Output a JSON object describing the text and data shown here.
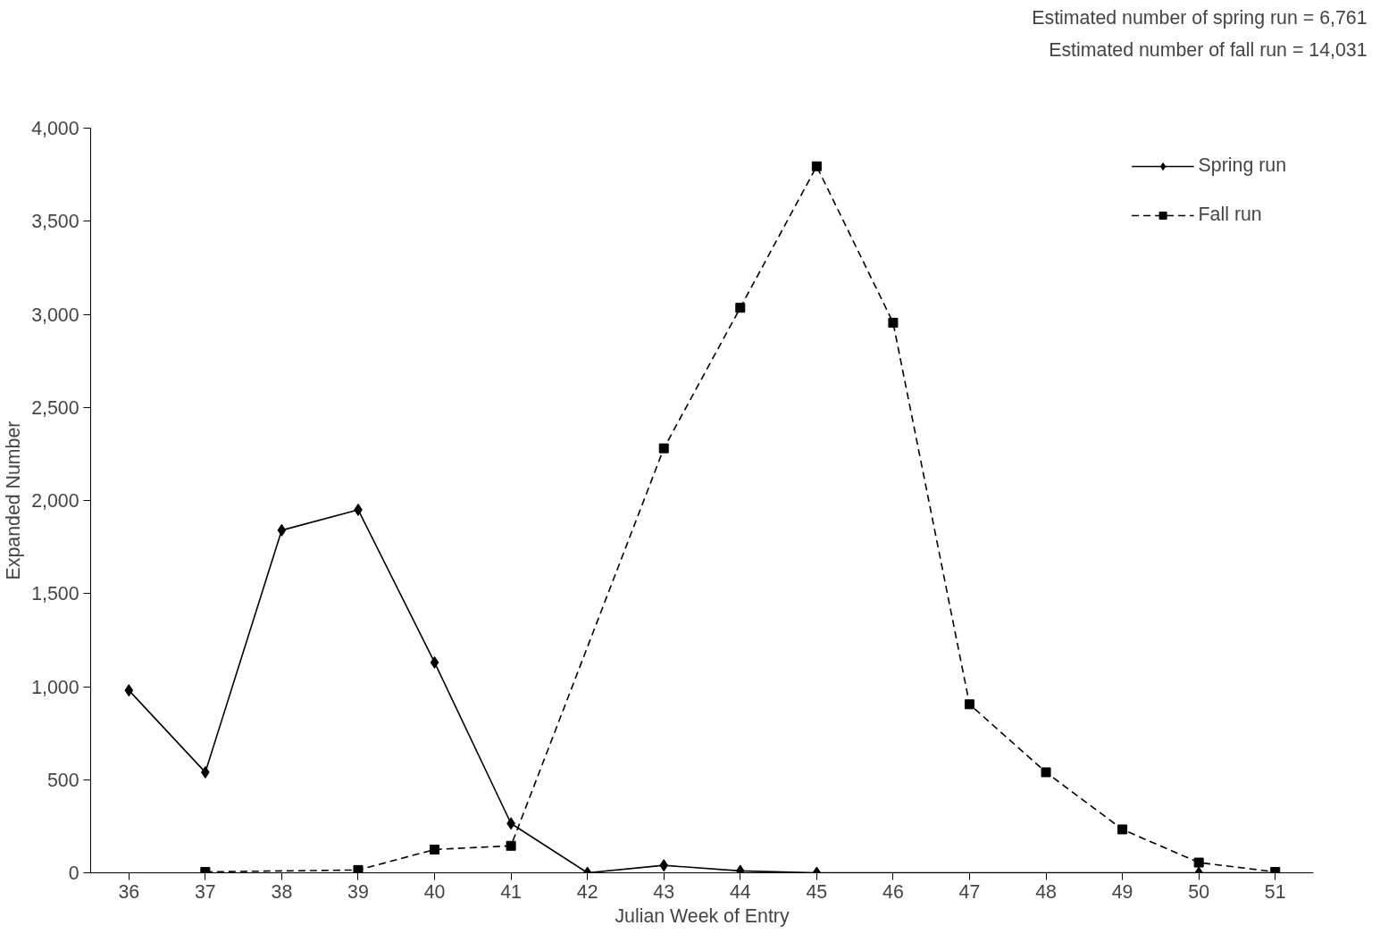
{
  "chart_data": {
    "type": "line",
    "xlabel": "Julian Week of Entry",
    "ylabel": "Expanded Number",
    "annotations": [
      "Estimated number of spring run = 6,761",
      "Estimated number of fall run = 14,031"
    ],
    "xlim": [
      35.5,
      51.5
    ],
    "xticks": [
      36,
      37,
      38,
      39,
      40,
      41,
      42,
      43,
      44,
      45,
      46,
      47,
      48,
      49,
      50,
      51
    ],
    "ylim": [
      0,
      4000
    ],
    "yticks": [
      {
        "value": 0,
        "label": "0"
      },
      {
        "value": 500,
        "label": "500"
      },
      {
        "value": 1000,
        "label": "1,000"
      },
      {
        "value": 1500,
        "label": "1,500"
      },
      {
        "value": 2000,
        "label": "2,000"
      },
      {
        "value": 2500,
        "label": "2,500"
      },
      {
        "value": 3000,
        "label": "3,000"
      },
      {
        "value": 3500,
        "label": "3,500"
      },
      {
        "value": 4000,
        "label": "4,000"
      }
    ],
    "grid": false,
    "legend": "top right",
    "series": [
      {
        "name": "Spring run",
        "color": "#000000",
        "marker": "diamond",
        "line_style": "solid",
        "x": [
          36,
          37,
          38,
          39,
          40,
          41,
          42,
          43,
          44,
          45,
          50,
          51
        ],
        "values": [
          980,
          540,
          1840,
          1950,
          1130,
          265,
          0,
          40,
          10,
          0,
          0,
          0
        ]
      },
      {
        "name": "Fall run",
        "color": "#000000",
        "marker": "square",
        "line_style": "dashed",
        "x": [
          37,
          39,
          40,
          41,
          43,
          44,
          45,
          46,
          47,
          48,
          49,
          50,
          51
        ],
        "values": [
          5,
          15,
          125,
          145,
          2280,
          3035,
          3795,
          2955,
          905,
          540,
          233,
          55,
          5
        ]
      }
    ]
  }
}
